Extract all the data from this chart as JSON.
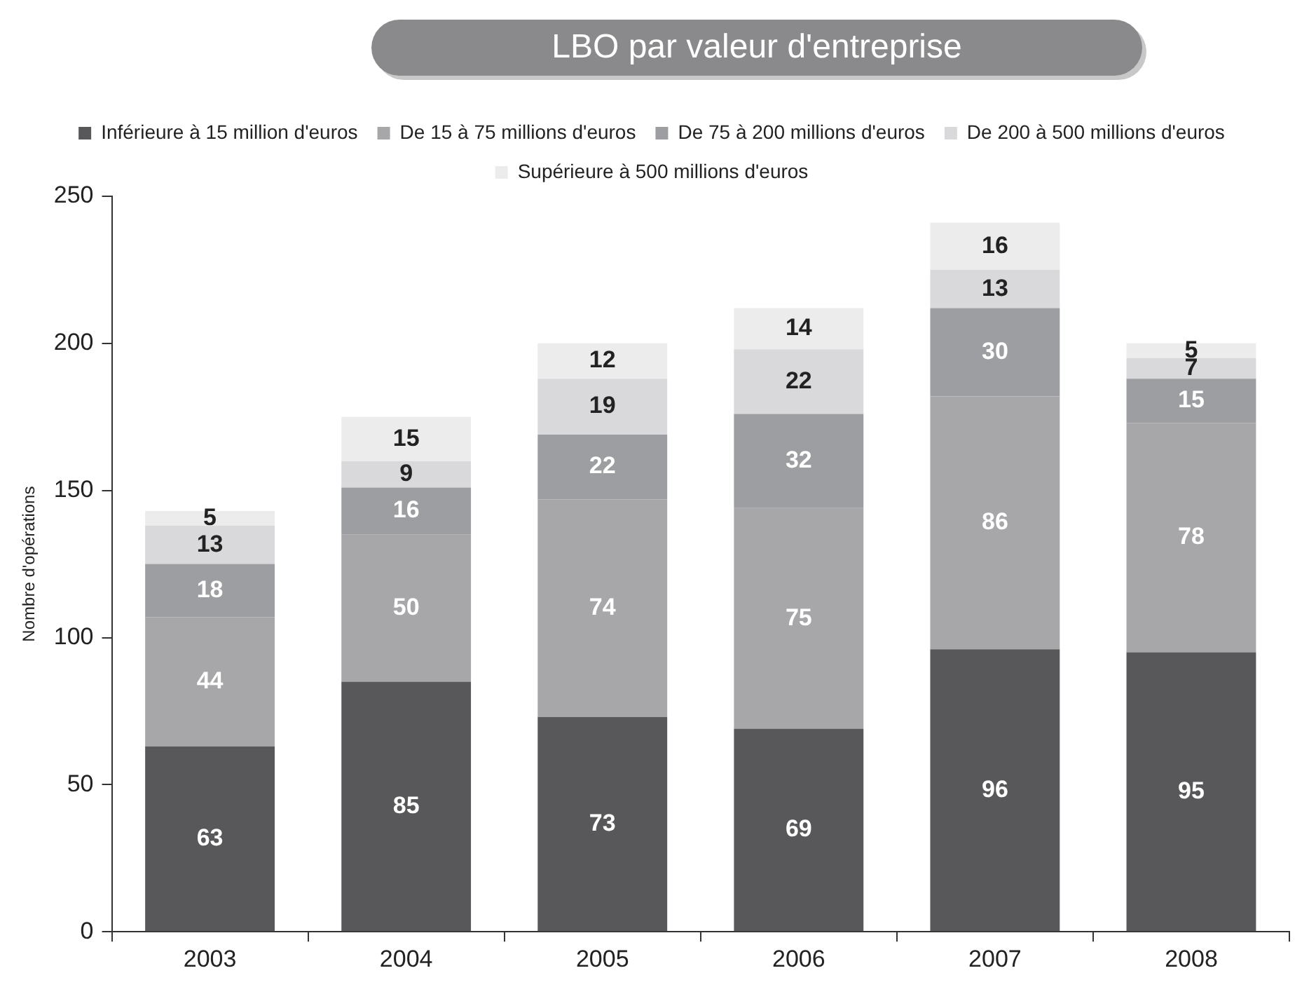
{
  "chart_data": {
    "type": "bar",
    "title": "LBO par valeur d'entreprise",
    "ylabel": "Nombre d'opérations",
    "categories": [
      "2003",
      "2004",
      "2005",
      "2006",
      "2007",
      "2008"
    ],
    "stacked": true,
    "series": [
      {
        "name": "Inférieure à 15 million d'euros",
        "color": "#58585a",
        "values": [
          63,
          85,
          73,
          69,
          96,
          95
        ]
      },
      {
        "name": "De 15 à 75 millions d'euros",
        "color": "#a7a7aa",
        "values": [
          44,
          50,
          74,
          75,
          86,
          78
        ]
      },
      {
        "name": "De 75 à 200 millions d'euros",
        "color": "#9d9ea1",
        "values": [
          18,
          16,
          22,
          32,
          30,
          15
        ]
      },
      {
        "name": "De 200 à 500 millions d'euros",
        "color": "#d9d9db",
        "values": [
          13,
          9,
          19,
          22,
          13,
          7
        ]
      },
      {
        "name": "Supérieure à 500 millions d'euros",
        "color": "#ececed",
        "values": [
          5,
          15,
          12,
          14,
          16,
          5
        ]
      }
    ],
    "ylim": [
      0,
      250
    ],
    "yticks": [
      0,
      50,
      100,
      150,
      200,
      250
    ],
    "grid": false,
    "legend": "top",
    "data_labels": true
  }
}
